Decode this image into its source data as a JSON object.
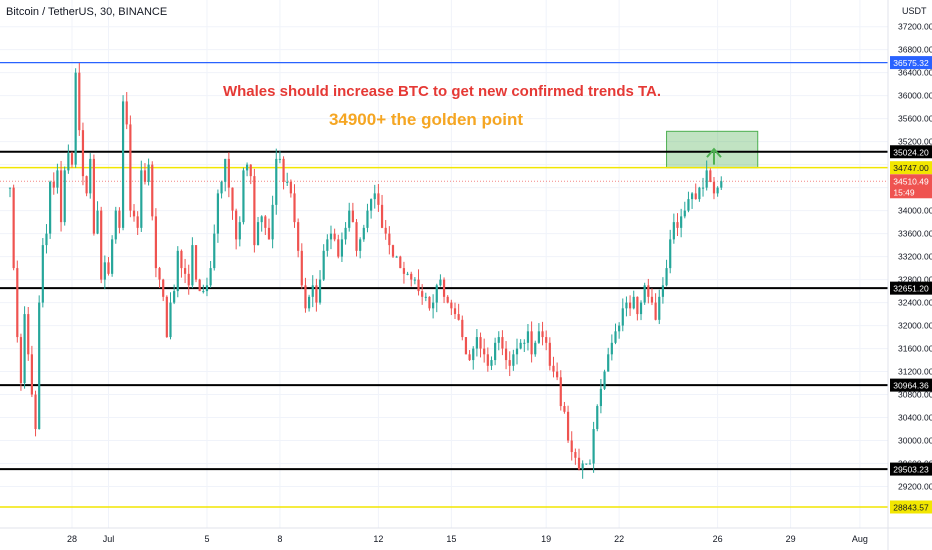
{
  "header": {
    "symbol": "Bitcoin / TetherUS, 30, BINANCE",
    "currency": "USDT"
  },
  "annotations": {
    "headline": "Whales should increase BTC to get new confirmed trends TA.",
    "subline": "34900+ the golden point",
    "headline_color": "#e53935",
    "subline_color": "#f5a623"
  },
  "chart_data": {
    "type": "candlestick",
    "ylim": [
      28600,
      37400
    ],
    "y_ticks": [
      29200,
      29600,
      30000,
      30400,
      30800,
      31200,
      31600,
      32000,
      32400,
      32800,
      33200,
      33600,
      34000,
      34400,
      34800,
      35200,
      35600,
      36000,
      36400,
      36800,
      37200
    ],
    "x_ticks": [
      "28",
      "Jul",
      "5",
      "8",
      "12",
      "15",
      "19",
      "22",
      "26",
      "29",
      "Aug"
    ],
    "x_tick_index": [
      27,
      37,
      64,
      84,
      111,
      131,
      157,
      177,
      204,
      224,
      243
    ],
    "x_range": [
      10,
      254
    ],
    "horizontal_levels": [
      {
        "price": 36575.32,
        "label": "36575.32",
        "color": "#2962ff"
      },
      {
        "price": 35024.2,
        "label": "35024.20",
        "color": "#000000"
      },
      {
        "price": 34747.0,
        "label": "34747.00",
        "color": "#f2e600"
      },
      {
        "price": 32651.2,
        "label": "32651.20",
        "color": "#000000"
      },
      {
        "price": 30964.36,
        "label": "30964.36",
        "color": "#000000"
      },
      {
        "price": 29503.23,
        "label": "29503.23",
        "color": "#000000"
      },
      {
        "price": 28843.57,
        "label": "28843.57",
        "color": "#f2e600"
      }
    ],
    "current_price": {
      "price": 34510.49,
      "label": "34510.49",
      "countdown": "15:49",
      "color": "#ef5350"
    },
    "target_zone": {
      "low": 34747,
      "high": 35380,
      "start_index": 190,
      "end_index": 215,
      "color": "#4caf50"
    },
    "arrow": {
      "from_price": 34800,
      "to_price": 35070,
      "index": 203,
      "color": "#4caf50"
    },
    "series": [
      {
        "values": [
          34400,
          33000,
          31800,
          31000,
          32200,
          31500,
          30800,
          30200,
          32400,
          33400,
          33600,
          34500,
          34400,
          34700,
          33800,
          34700,
          35000,
          34800,
          36400,
          35400,
          34600,
          34300,
          34900,
          33600,
          34000,
          32800,
          33100,
          32900,
          33500,
          34000,
          33700,
          35900,
          35500,
          34000,
          33900,
          33700,
          34700,
          34500,
          34800,
          33900,
          33000,
          32800,
          32500,
          31800,
          32400,
          32600,
          33300,
          33000,
          32900,
          32700,
          33400,
          32800,
          32600,
          32600,
          32700,
          33000,
          33600,
          34300,
          34500,
          34900,
          34400,
          34000,
          33500,
          33800,
          34700,
          34800,
          34600,
          33400,
          33800,
          33900,
          33700,
          33500,
          34100,
          34900,
          34900,
          34500,
          34500,
          34300,
          33800,
          33300,
          32700,
          32300,
          32500,
          32700,
          32400,
          32800,
          33300,
          33500,
          33600,
          33500,
          33200,
          33500,
          33700,
          34000,
          33800,
          33300,
          33500,
          33700,
          34000,
          34200,
          34300,
          34100,
          33700,
          33600,
          33400,
          33200,
          33200,
          33000,
          32900,
          32900,
          32800,
          32800,
          32600,
          32500,
          32500,
          32300,
          32400,
          32700,
          32800,
          32500,
          32400,
          32300,
          32200,
          32100,
          31800,
          31500,
          31400,
          31600,
          31800,
          31600,
          31500,
          31300,
          31400,
          31700,
          31800,
          31600,
          31400,
          31300,
          31500,
          31600,
          31700,
          31700,
          31900,
          31500,
          31700,
          31900,
          31800,
          31700,
          31300,
          31200,
          31100,
          30600,
          30500,
          30000,
          29800,
          29700,
          29500,
          29600,
          29600,
          29600,
          30200,
          30600,
          30900,
          31200,
          31500,
          31700,
          31900,
          32000,
          32300,
          32400,
          32300,
          32500,
          32200,
          32400,
          32700,
          32500,
          32400,
          32100,
          32500,
          32700,
          33000,
          33500,
          33800,
          33700,
          33900,
          34000,
          34200,
          34300,
          34200,
          34400,
          34400,
          34700,
          34500,
          34300,
          34400,
          34510.49
        ]
      }
    ]
  }
}
